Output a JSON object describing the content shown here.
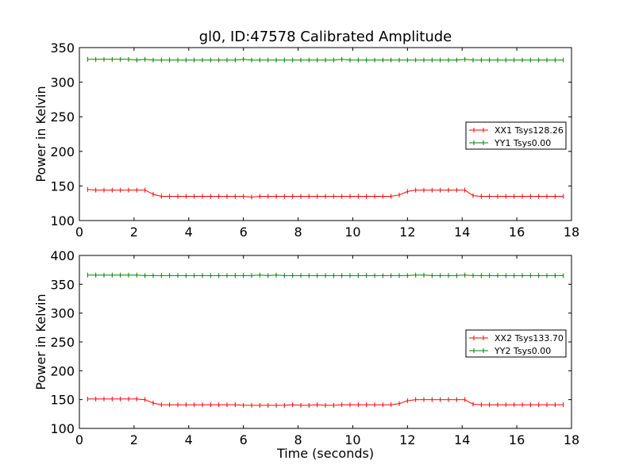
{
  "figure": {
    "title": "gl0, ID:47578 Calibrated Amplitude"
  },
  "colors": {
    "red": "#ff0000",
    "green": "#008000"
  },
  "chart_data": [
    {
      "type": "line",
      "title": "gl0, ID:47578 Calibrated Amplitude",
      "xlabel": "",
      "ylabel": "Power in Kelvin",
      "xlim": [
        0,
        18
      ],
      "ylim": [
        100,
        350
      ],
      "xticks": [
        0,
        2,
        4,
        6,
        8,
        10,
        12,
        14,
        16,
        18
      ],
      "yticks": [
        100,
        150,
        200,
        250,
        300,
        350
      ],
      "legend_placement": "center-right",
      "grid": false,
      "x": [
        0.3,
        0.6,
        0.9,
        1.2,
        1.5,
        1.8,
        2.1,
        2.4,
        2.7,
        3.0,
        3.3,
        3.6,
        3.9,
        4.2,
        4.5,
        4.8,
        5.1,
        5.4,
        5.7,
        6.0,
        6.3,
        6.6,
        6.9,
        7.2,
        7.5,
        7.8,
        8.1,
        8.4,
        8.7,
        9.0,
        9.3,
        9.6,
        9.9,
        10.2,
        10.5,
        10.8,
        11.1,
        11.4,
        11.7,
        12.0,
        12.3,
        12.6,
        12.9,
        13.2,
        13.5,
        13.8,
        14.1,
        14.4,
        14.7,
        15.0,
        15.3,
        15.6,
        15.9,
        16.2,
        16.5,
        16.8,
        17.1,
        17.4,
        17.7
      ],
      "series": [
        {
          "name": "XX1 Tsys128.26",
          "color": "#ff0000",
          "values": [
            145,
            144,
            144,
            144,
            144,
            144,
            144,
            144,
            138,
            135,
            135,
            135,
            135,
            135,
            135,
            135,
            135,
            135,
            135,
            135,
            134,
            135,
            135,
            135,
            135,
            135,
            135,
            135,
            135,
            135,
            135,
            135,
            135,
            135,
            135,
            135,
            135,
            135,
            137,
            142,
            144,
            144,
            144,
            144,
            144,
            144,
            144,
            136,
            135,
            135,
            135,
            135,
            135,
            135,
            135,
            135,
            135,
            135,
            135
          ]
        },
        {
          "name": "YY1 Tsys0.00",
          "color": "#008000",
          "values": [
            333,
            333,
            333,
            333,
            333,
            333,
            332,
            333,
            332,
            332,
            332,
            332,
            332,
            332,
            332,
            332,
            332,
            332,
            332,
            333,
            332,
            332,
            332,
            332,
            332,
            332,
            332,
            332,
            332,
            332,
            332,
            333,
            332,
            332,
            332,
            332,
            332,
            332,
            332,
            332,
            332,
            332,
            332,
            332,
            332,
            332,
            333,
            332,
            332,
            332,
            332,
            332,
            332,
            332,
            332,
            332,
            332,
            332,
            332
          ]
        }
      ]
    },
    {
      "type": "line",
      "title": "",
      "xlabel": "Time (seconds)",
      "ylabel": "Power in Kelvin",
      "xlim": [
        0,
        18
      ],
      "ylim": [
        100,
        400
      ],
      "xticks": [
        0,
        2,
        4,
        6,
        8,
        10,
        12,
        14,
        16,
        18
      ],
      "yticks": [
        100,
        150,
        200,
        250,
        300,
        350,
        400
      ],
      "legend_placement": "center-right",
      "grid": false,
      "x": [
        0.3,
        0.6,
        0.9,
        1.2,
        1.5,
        1.8,
        2.1,
        2.4,
        2.7,
        3.0,
        3.3,
        3.6,
        3.9,
        4.2,
        4.5,
        4.8,
        5.1,
        5.4,
        5.7,
        6.0,
        6.3,
        6.6,
        6.9,
        7.2,
        7.5,
        7.8,
        8.1,
        8.4,
        8.7,
        9.0,
        9.3,
        9.6,
        9.9,
        10.2,
        10.5,
        10.8,
        11.1,
        11.4,
        11.7,
        12.0,
        12.3,
        12.6,
        12.9,
        13.2,
        13.5,
        13.8,
        14.1,
        14.4,
        14.7,
        15.0,
        15.3,
        15.6,
        15.9,
        16.2,
        16.5,
        16.8,
        17.1,
        17.4,
        17.7
      ],
      "series": [
        {
          "name": "XX2 Tsys133.70",
          "color": "#ff0000",
          "values": [
            151,
            151,
            151,
            151,
            151,
            151,
            151,
            150,
            144,
            141,
            141,
            141,
            141,
            141,
            141,
            141,
            141,
            141,
            141,
            140,
            140,
            140,
            140,
            140,
            140,
            141,
            140,
            140,
            141,
            140,
            140,
            141,
            141,
            141,
            141,
            141,
            141,
            141,
            143,
            148,
            150,
            150,
            150,
            150,
            150,
            150,
            150,
            142,
            141,
            141,
            141,
            141,
            141,
            141,
            141,
            141,
            141,
            141,
            141
          ]
        },
        {
          "name": "YY2 Tsys0.00",
          "color": "#008000",
          "values": [
            366,
            366,
            366,
            366,
            366,
            366,
            366,
            365,
            365,
            365,
            365,
            365,
            365,
            365,
            365,
            365,
            365,
            365,
            365,
            365,
            365,
            366,
            365,
            366,
            365,
            365,
            365,
            365,
            365,
            365,
            365,
            365,
            365,
            365,
            365,
            365,
            365,
            365,
            365,
            365,
            366,
            366,
            365,
            365,
            365,
            365,
            366,
            365,
            365,
            365,
            365,
            365,
            365,
            365,
            365,
            365,
            365,
            365,
            365
          ]
        }
      ]
    }
  ]
}
